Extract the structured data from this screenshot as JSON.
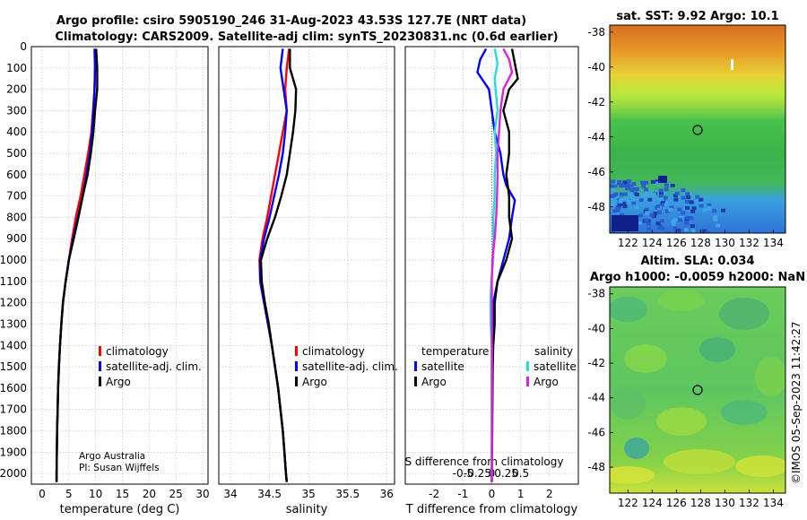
{
  "title": {
    "line1": "Argo profile: csiro 5905190_246 31-Aug-2023 43.53S 127.7E (NRT data)",
    "line2": "Climatology: CARS2009. Satellite-adj clim: synTS_20230831.nc (0.6d earlier)"
  },
  "credit": {
    "line1": "Argo Australia",
    "line2": "PI: Susan Wijffels"
  },
  "watermark": "©IMOS 05-Sep-2023 11:42:27",
  "colors": {
    "clim": "#ff0000",
    "sat": "#0000ff",
    "argo": "#000000",
    "sat_s": "#22dddd",
    "argo_s": "#dd22dd"
  },
  "chart_data": [
    {
      "type": "line",
      "xlabel": "temperature (deg C)",
      "xticks": [
        "0",
        "5",
        "10",
        "15",
        "20",
        "25",
        "30"
      ],
      "xlim": [
        -2,
        31
      ],
      "ylim": [
        2050,
        0
      ],
      "yticks": [
        "0",
        "100",
        "200",
        "300",
        "400",
        "500",
        "600",
        "700",
        "800",
        "900",
        "1000",
        "1100",
        "1200",
        "1300",
        "1400",
        "1500",
        "1600",
        "1700",
        "1800",
        "1900",
        "2000"
      ],
      "grid": true,
      "legend": [
        "climatology",
        "satellite-adj. clim.",
        "Argo"
      ],
      "series": [
        {
          "name": "climatology",
          "color": "#ff0000",
          "points": [
            [
              10,
              10
            ],
            [
              9.9,
              100
            ],
            [
              9.8,
              200
            ],
            [
              9.5,
              300
            ],
            [
              9.2,
              400
            ],
            [
              8.6,
              500
            ],
            [
              7.9,
              600
            ],
            [
              7.2,
              700
            ],
            [
              6.3,
              800
            ],
            [
              5.6,
              900
            ],
            [
              5.0,
              1000
            ],
            [
              4.4,
              1100
            ],
            [
              3.9,
              1200
            ],
            [
              3.6,
              1300
            ],
            [
              3.35,
              1400
            ],
            [
              3.15,
              1500
            ],
            [
              3.0,
              1600
            ],
            [
              2.9,
              1700
            ],
            [
              2.8,
              1800
            ],
            [
              2.75,
              1900
            ],
            [
              2.7,
              2000
            ],
            [
              2.7,
              2040
            ]
          ]
        },
        {
          "name": "satellite-adj. clim.",
          "color": "#0000ff",
          "points": [
            [
              9.8,
              10
            ],
            [
              9.9,
              100
            ],
            [
              9.8,
              200
            ],
            [
              9.6,
              300
            ],
            [
              9.3,
              400
            ],
            [
              8.9,
              500
            ],
            [
              8.3,
              600
            ],
            [
              7.6,
              700
            ],
            [
              6.7,
              800
            ],
            [
              5.8,
              900
            ],
            [
              5.0,
              1000
            ],
            [
              4.4,
              1100
            ],
            [
              3.9,
              1200
            ],
            [
              3.6,
              1300
            ],
            [
              3.35,
              1400
            ],
            [
              3.15,
              1500
            ],
            [
              3.0,
              1600
            ],
            [
              2.9,
              1700
            ],
            [
              2.8,
              1800
            ],
            [
              2.75,
              1900
            ],
            [
              2.7,
              2000
            ],
            [
              2.7,
              2040
            ]
          ]
        },
        {
          "name": "Argo",
          "color": "#000000",
          "points": [
            [
              10.1,
              10
            ],
            [
              10.3,
              100
            ],
            [
              10.3,
              200
            ],
            [
              9.9,
              300
            ],
            [
              9.6,
              400
            ],
            [
              9.1,
              500
            ],
            [
              8.5,
              600
            ],
            [
              7.6,
              700
            ],
            [
              6.8,
              800
            ],
            [
              5.9,
              900
            ],
            [
              5.0,
              1000
            ],
            [
              4.4,
              1100
            ],
            [
              3.9,
              1200
            ],
            [
              3.6,
              1300
            ],
            [
              3.35,
              1400
            ],
            [
              3.15,
              1500
            ],
            [
              3.0,
              1600
            ],
            [
              2.9,
              1700
            ],
            [
              2.8,
              1800
            ],
            [
              2.75,
              1900
            ],
            [
              2.7,
              2000
            ],
            [
              2.7,
              2040
            ]
          ]
        }
      ]
    },
    {
      "type": "line",
      "xlabel": "salinity",
      "xticks": [
        "34",
        "34.5",
        "35",
        "35.5",
        "36"
      ],
      "xlim": [
        33.85,
        36.1
      ],
      "ylim": [
        2050,
        0
      ],
      "grid": true,
      "legend": [
        "climatology",
        "satellite-adj. clim.",
        "Argo"
      ],
      "series": [
        {
          "name": "climatology",
          "color": "#ff0000",
          "points": [
            [
              34.75,
              10
            ],
            [
              34.72,
              100
            ],
            [
              34.7,
              200
            ],
            [
              34.72,
              300
            ],
            [
              34.67,
              400
            ],
            [
              34.62,
              500
            ],
            [
              34.57,
              600
            ],
            [
              34.52,
              700
            ],
            [
              34.47,
              800
            ],
            [
              34.41,
              900
            ],
            [
              34.37,
              1000
            ],
            [
              34.38,
              1100
            ],
            [
              34.43,
              1200
            ],
            [
              34.48,
              1300
            ],
            [
              34.53,
              1400
            ],
            [
              34.57,
              1500
            ],
            [
              34.61,
              1600
            ],
            [
              34.64,
              1700
            ],
            [
              34.67,
              1800
            ],
            [
              34.69,
              1900
            ],
            [
              34.71,
              2000
            ],
            [
              34.72,
              2040
            ]
          ]
        },
        {
          "name": "satellite-adj. clim.",
          "color": "#0000ff",
          "points": [
            [
              34.67,
              10
            ],
            [
              34.64,
              100
            ],
            [
              34.68,
              200
            ],
            [
              34.72,
              300
            ],
            [
              34.7,
              400
            ],
            [
              34.67,
              500
            ],
            [
              34.62,
              600
            ],
            [
              34.56,
              700
            ],
            [
              34.5,
              800
            ],
            [
              34.43,
              900
            ],
            [
              34.38,
              1000
            ],
            [
              34.38,
              1100
            ],
            [
              34.43,
              1200
            ],
            [
              34.48,
              1300
            ],
            [
              34.53,
              1400
            ],
            [
              34.57,
              1500
            ],
            [
              34.61,
              1600
            ],
            [
              34.64,
              1700
            ],
            [
              34.67,
              1800
            ],
            [
              34.69,
              1900
            ],
            [
              34.71,
              2000
            ],
            [
              34.72,
              2040
            ]
          ]
        },
        {
          "name": "Argo",
          "color": "#000000",
          "points": [
            [
              34.76,
              10
            ],
            [
              34.76,
              100
            ],
            [
              34.84,
              200
            ],
            [
              34.83,
              300
            ],
            [
              34.8,
              400
            ],
            [
              34.76,
              500
            ],
            [
              34.72,
              600
            ],
            [
              34.65,
              700
            ],
            [
              34.57,
              800
            ],
            [
              34.47,
              900
            ],
            [
              34.39,
              1000
            ],
            [
              34.4,
              1100
            ],
            [
              34.44,
              1200
            ],
            [
              34.49,
              1300
            ],
            [
              34.53,
              1400
            ],
            [
              34.57,
              1500
            ],
            [
              34.61,
              1600
            ],
            [
              34.64,
              1700
            ],
            [
              34.67,
              1800
            ],
            [
              34.69,
              1900
            ],
            [
              34.71,
              2000
            ],
            [
              34.72,
              2040
            ]
          ]
        }
      ]
    },
    {
      "type": "line",
      "xlabel": "T difference from climatology",
      "xticks": [
        "-2",
        "-1",
        "0",
        "1",
        "2"
      ],
      "xlim": [
        -3.0,
        3.0
      ],
      "ylim": [
        2050,
        0
      ],
      "grid": true,
      "top_axis_label": "S difference from climatology",
      "top_ticks": [
        "-0.5",
        "-0.25",
        "0",
        "0.25",
        "0.5"
      ],
      "legend_left_title": "temperature",
      "legend_right_title": "salinity",
      "legend_left": [
        "satellite",
        "Argo"
      ],
      "legend_right": [
        "satellite",
        "Argo"
      ],
      "series": [
        {
          "name": "satellite",
          "color": "#0000ff",
          "points": [
            [
              -0.2,
              10
            ],
            [
              -0.4,
              60
            ],
            [
              -0.5,
              120
            ],
            [
              -0.1,
              200
            ],
            [
              0.0,
              300
            ],
            [
              0.1,
              400
            ],
            [
              0.3,
              500
            ],
            [
              0.4,
              600
            ],
            [
              0.5,
              650
            ],
            [
              0.8,
              720
            ],
            [
              0.7,
              800
            ],
            [
              0.6,
              900
            ],
            [
              0.4,
              1000
            ],
            [
              0.2,
              1100
            ],
            [
              0.05,
              1200
            ],
            [
              0.05,
              1300
            ],
            [
              0.02,
              1400
            ],
            [
              0.02,
              1500
            ],
            [
              0.01,
              1700
            ],
            [
              0.0,
              2040
            ]
          ]
        },
        {
          "name": "Argo",
          "color": "#000000",
          "points": [
            [
              0.7,
              10
            ],
            [
              0.8,
              80
            ],
            [
              0.9,
              150
            ],
            [
              0.6,
              200
            ],
            [
              0.4,
              300
            ],
            [
              0.6,
              400
            ],
            [
              0.6,
              500
            ],
            [
              0.5,
              600
            ],
            [
              0.6,
              700
            ],
            [
              0.6,
              800
            ],
            [
              0.7,
              900
            ],
            [
              0.5,
              1000
            ],
            [
              0.2,
              1100
            ],
            [
              0.1,
              1200
            ],
            [
              0.1,
              1300
            ],
            [
              0.05,
              1400
            ],
            [
              0.03,
              1500
            ],
            [
              0.02,
              1700
            ],
            [
              0.01,
              1900
            ],
            [
              0.0,
              2040
            ]
          ]
        },
        {
          "name": "satellite S",
          "color": "#22dddd",
          "points": [
            [
              0.1,
              10
            ],
            [
              0.2,
              80
            ],
            [
              0.1,
              150
            ],
            [
              0.2,
              300
            ],
            [
              0.1,
              400
            ],
            [
              0.15,
              500
            ],
            [
              0.1,
              600
            ],
            [
              0.1,
              700
            ],
            [
              0.05,
              800
            ],
            [
              0.05,
              900
            ],
            [
              0.05,
              1000
            ],
            [
              -0.02,
              1100
            ],
            [
              -0.05,
              1200
            ],
            [
              -0.04,
              1300
            ],
            [
              0.0,
              1400
            ],
            [
              0.0,
              1600
            ],
            [
              0.0,
              2040
            ]
          ]
        },
        {
          "name": "Argo S",
          "color": "#dd22dd",
          "points": [
            [
              0.4,
              10
            ],
            [
              0.6,
              60
            ],
            [
              0.7,
              120
            ],
            [
              0.4,
              200
            ],
            [
              0.3,
              300
            ],
            [
              0.25,
              400
            ],
            [
              0.2,
              500
            ],
            [
              0.2,
              600
            ],
            [
              0.18,
              700
            ],
            [
              0.15,
              800
            ],
            [
              0.1,
              900
            ],
            [
              0.02,
              1000
            ],
            [
              0.0,
              1100
            ],
            [
              0.0,
              1200
            ],
            [
              0.0,
              1400
            ],
            [
              0.0,
              2040
            ]
          ]
        }
      ]
    },
    {
      "type": "heatmap",
      "title": "sat. SST: 9.92 Argo: 10.1",
      "xticks": [
        "122",
        "124",
        "126",
        "128",
        "130",
        "132",
        "134"
      ],
      "yticks": [
        "-38",
        "-40",
        "-42",
        "-44",
        "-46",
        "-48"
      ],
      "xlim": [
        120.5,
        135.0
      ],
      "ylim": [
        -49.5,
        -37.6
      ],
      "marker": [
        127.7,
        -43.53
      ]
    },
    {
      "type": "heatmap",
      "title_line1": "Altim. SLA: 0.034",
      "title_line2": "Argo h1000: -0.0059 h2000: NaN",
      "xticks": [
        "122",
        "124",
        "126",
        "128",
        "130",
        "132",
        "134"
      ],
      "yticks": [
        "-38",
        "-40",
        "-42",
        "-44",
        "-46",
        "-48"
      ],
      "xlim": [
        120.5,
        135.0
      ],
      "ylim": [
        -49.5,
        -37.6
      ],
      "marker": [
        127.7,
        -43.53
      ]
    }
  ]
}
